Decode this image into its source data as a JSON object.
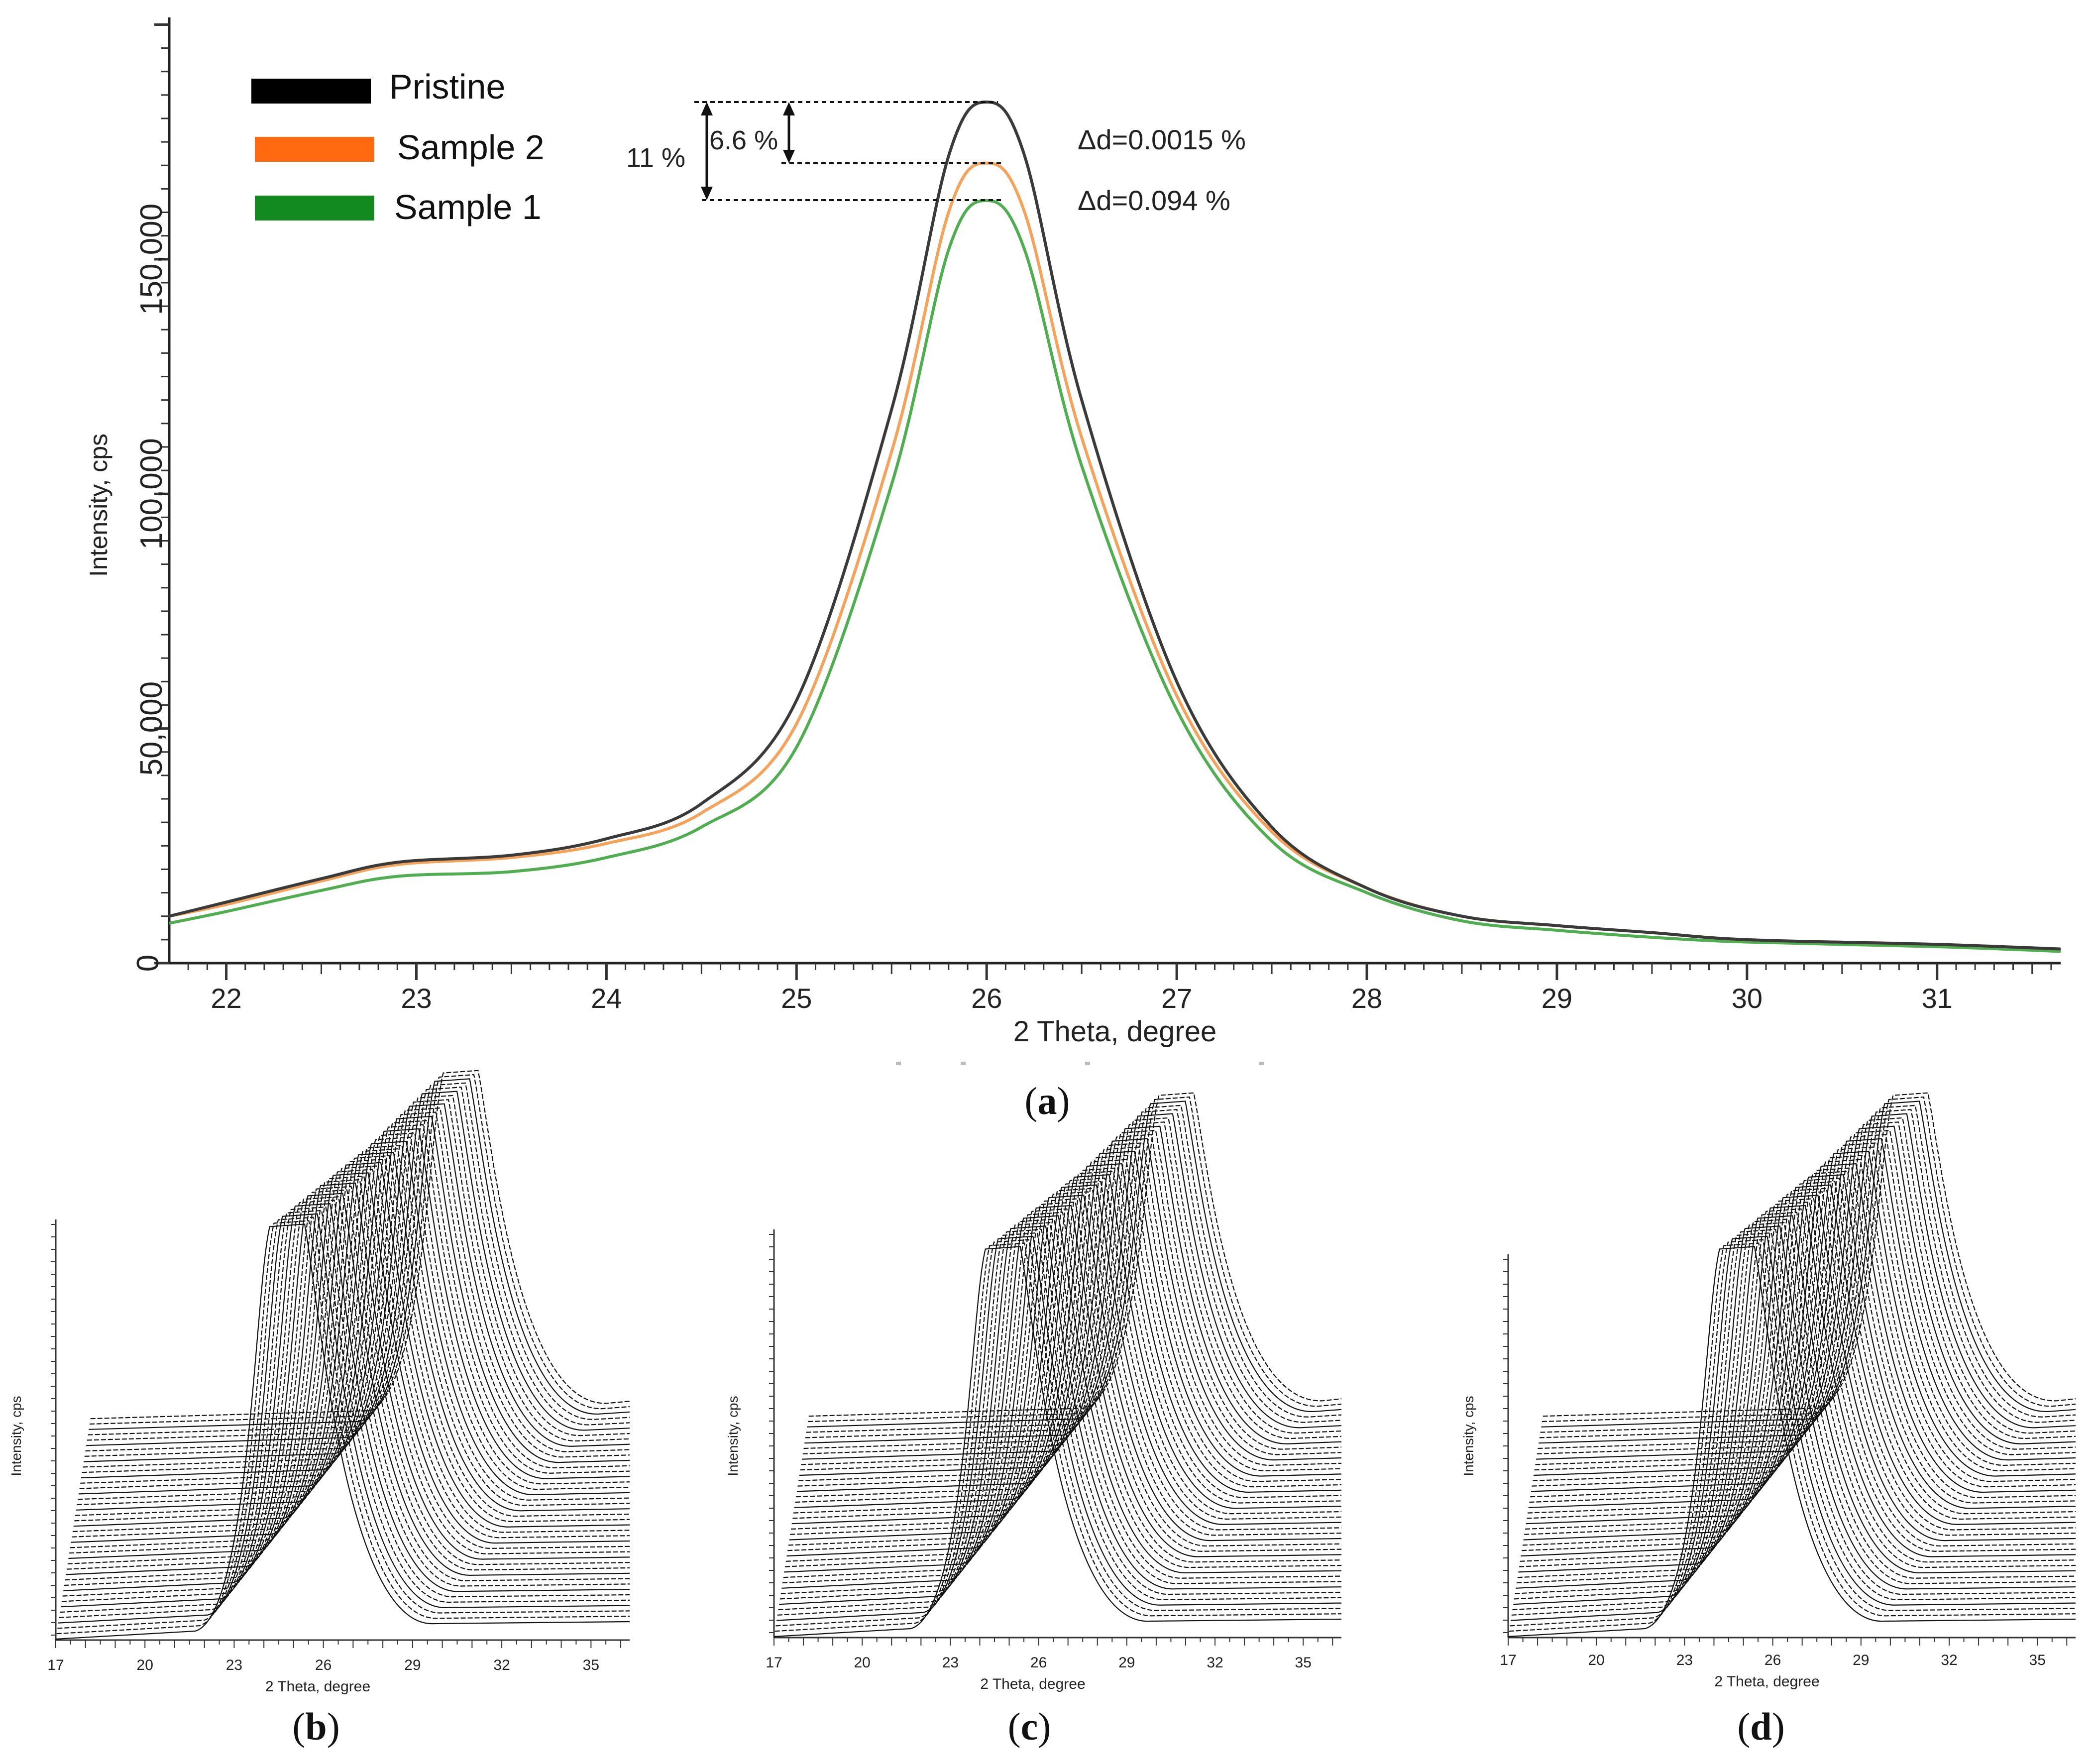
{
  "chart_data": [
    {
      "panel": "a",
      "type": "line",
      "caption_letter": "a",
      "xlabel": "2 Theta, degree",
      "ylabel": "Intensity, cps",
      "xlim": [
        21.7,
        31.65
      ],
      "ylim": [
        0,
        200000
      ],
      "x_ticks": [
        "22",
        "23",
        "24",
        "25",
        "26",
        "27",
        "28",
        "29",
        "30",
        "31"
      ],
      "y_ticks": [
        "0",
        "50,000",
        "100,000",
        "150,000"
      ],
      "y_tick_values": [
        0,
        50000,
        100000,
        150000
      ],
      "series": [
        {
          "name": "Pristine",
          "color": "#000000",
          "line_color": "#3a3a3a",
          "x": [
            21.7,
            22.0,
            22.5,
            22.9,
            23.5,
            24.0,
            24.5,
            25.0,
            25.5,
            25.8,
            26.0,
            26.2,
            26.5,
            27.0,
            27.5,
            28.0,
            28.5,
            29.0,
            29.5,
            30.0,
            31.0,
            31.65
          ],
          "y": [
            10000,
            13000,
            18000,
            21500,
            23000,
            26500,
            34000,
            56000,
            118000,
            172000,
            183500,
            172000,
            120000,
            60000,
            29000,
            16000,
            10000,
            8000,
            6500,
            5000,
            4000,
            3000
          ]
        },
        {
          "name": "Sample 2",
          "color": "#ff6a10",
          "line_color": "#f5a35a",
          "x": [
            21.7,
            22.0,
            22.5,
            22.9,
            23.5,
            24.0,
            24.5,
            25.0,
            25.5,
            25.8,
            26.0,
            26.2,
            26.5,
            27.0,
            27.5,
            28.0,
            28.5,
            29.0,
            29.5,
            30.0,
            31.0,
            31.65
          ],
          "y": [
            10000,
            12500,
            17500,
            21000,
            22500,
            25500,
            32000,
            51000,
            109000,
            160000,
            170500,
            160000,
            112000,
            57000,
            28000,
            16000,
            10000,
            8000,
            6500,
            5000,
            4000,
            3000
          ]
        },
        {
          "name": "Sample 1",
          "color": "#138a1f",
          "line_color": "#4fae4f",
          "x": [
            21.7,
            22.0,
            22.5,
            22.9,
            23.5,
            24.0,
            24.5,
            25.0,
            25.5,
            25.8,
            26.0,
            26.2,
            26.5,
            27.0,
            27.5,
            28.0,
            28.5,
            29.0,
            29.5,
            30.0,
            31.0,
            31.65
          ],
          "y": [
            8500,
            11000,
            15500,
            18500,
            19500,
            22500,
            29000,
            46000,
            102000,
            152000,
            162500,
            152000,
            106000,
            54000,
            26000,
            15000,
            9000,
            7000,
            5500,
            4500,
            3500,
            2500
          ]
        }
      ],
      "annotations": {
        "inner_pct": "6.6 %",
        "outer_pct": "11 %",
        "delta_sample2": "Δd=0.0015 %",
        "delta_sample1": "Δd=0.094 %"
      }
    },
    {
      "panel": "b",
      "type": "line",
      "caption_letter": "b",
      "xlabel": "2 Theta, degree",
      "ylabel": "Intensity, cps",
      "x_ticks": [
        "17",
        "20",
        "23",
        "26",
        "29",
        "32",
        "35"
      ],
      "description": "waterfall stack of many diffraction scans"
    },
    {
      "panel": "c",
      "type": "line",
      "caption_letter": "c",
      "xlabel": "2 Theta, degree",
      "ylabel": "Intensity, cps",
      "x_ticks": [
        "17",
        "20",
        "23",
        "26",
        "29",
        "32",
        "35"
      ],
      "description": "waterfall stack of many diffraction scans"
    },
    {
      "panel": "d",
      "type": "line",
      "caption_letter": "d",
      "xlabel": "2 Theta, degree",
      "ylabel": "Intensity, cps",
      "x_ticks": [
        "17",
        "20",
        "23",
        "26",
        "29",
        "32",
        "35"
      ],
      "description": "waterfall stack of many diffraction scans"
    }
  ]
}
